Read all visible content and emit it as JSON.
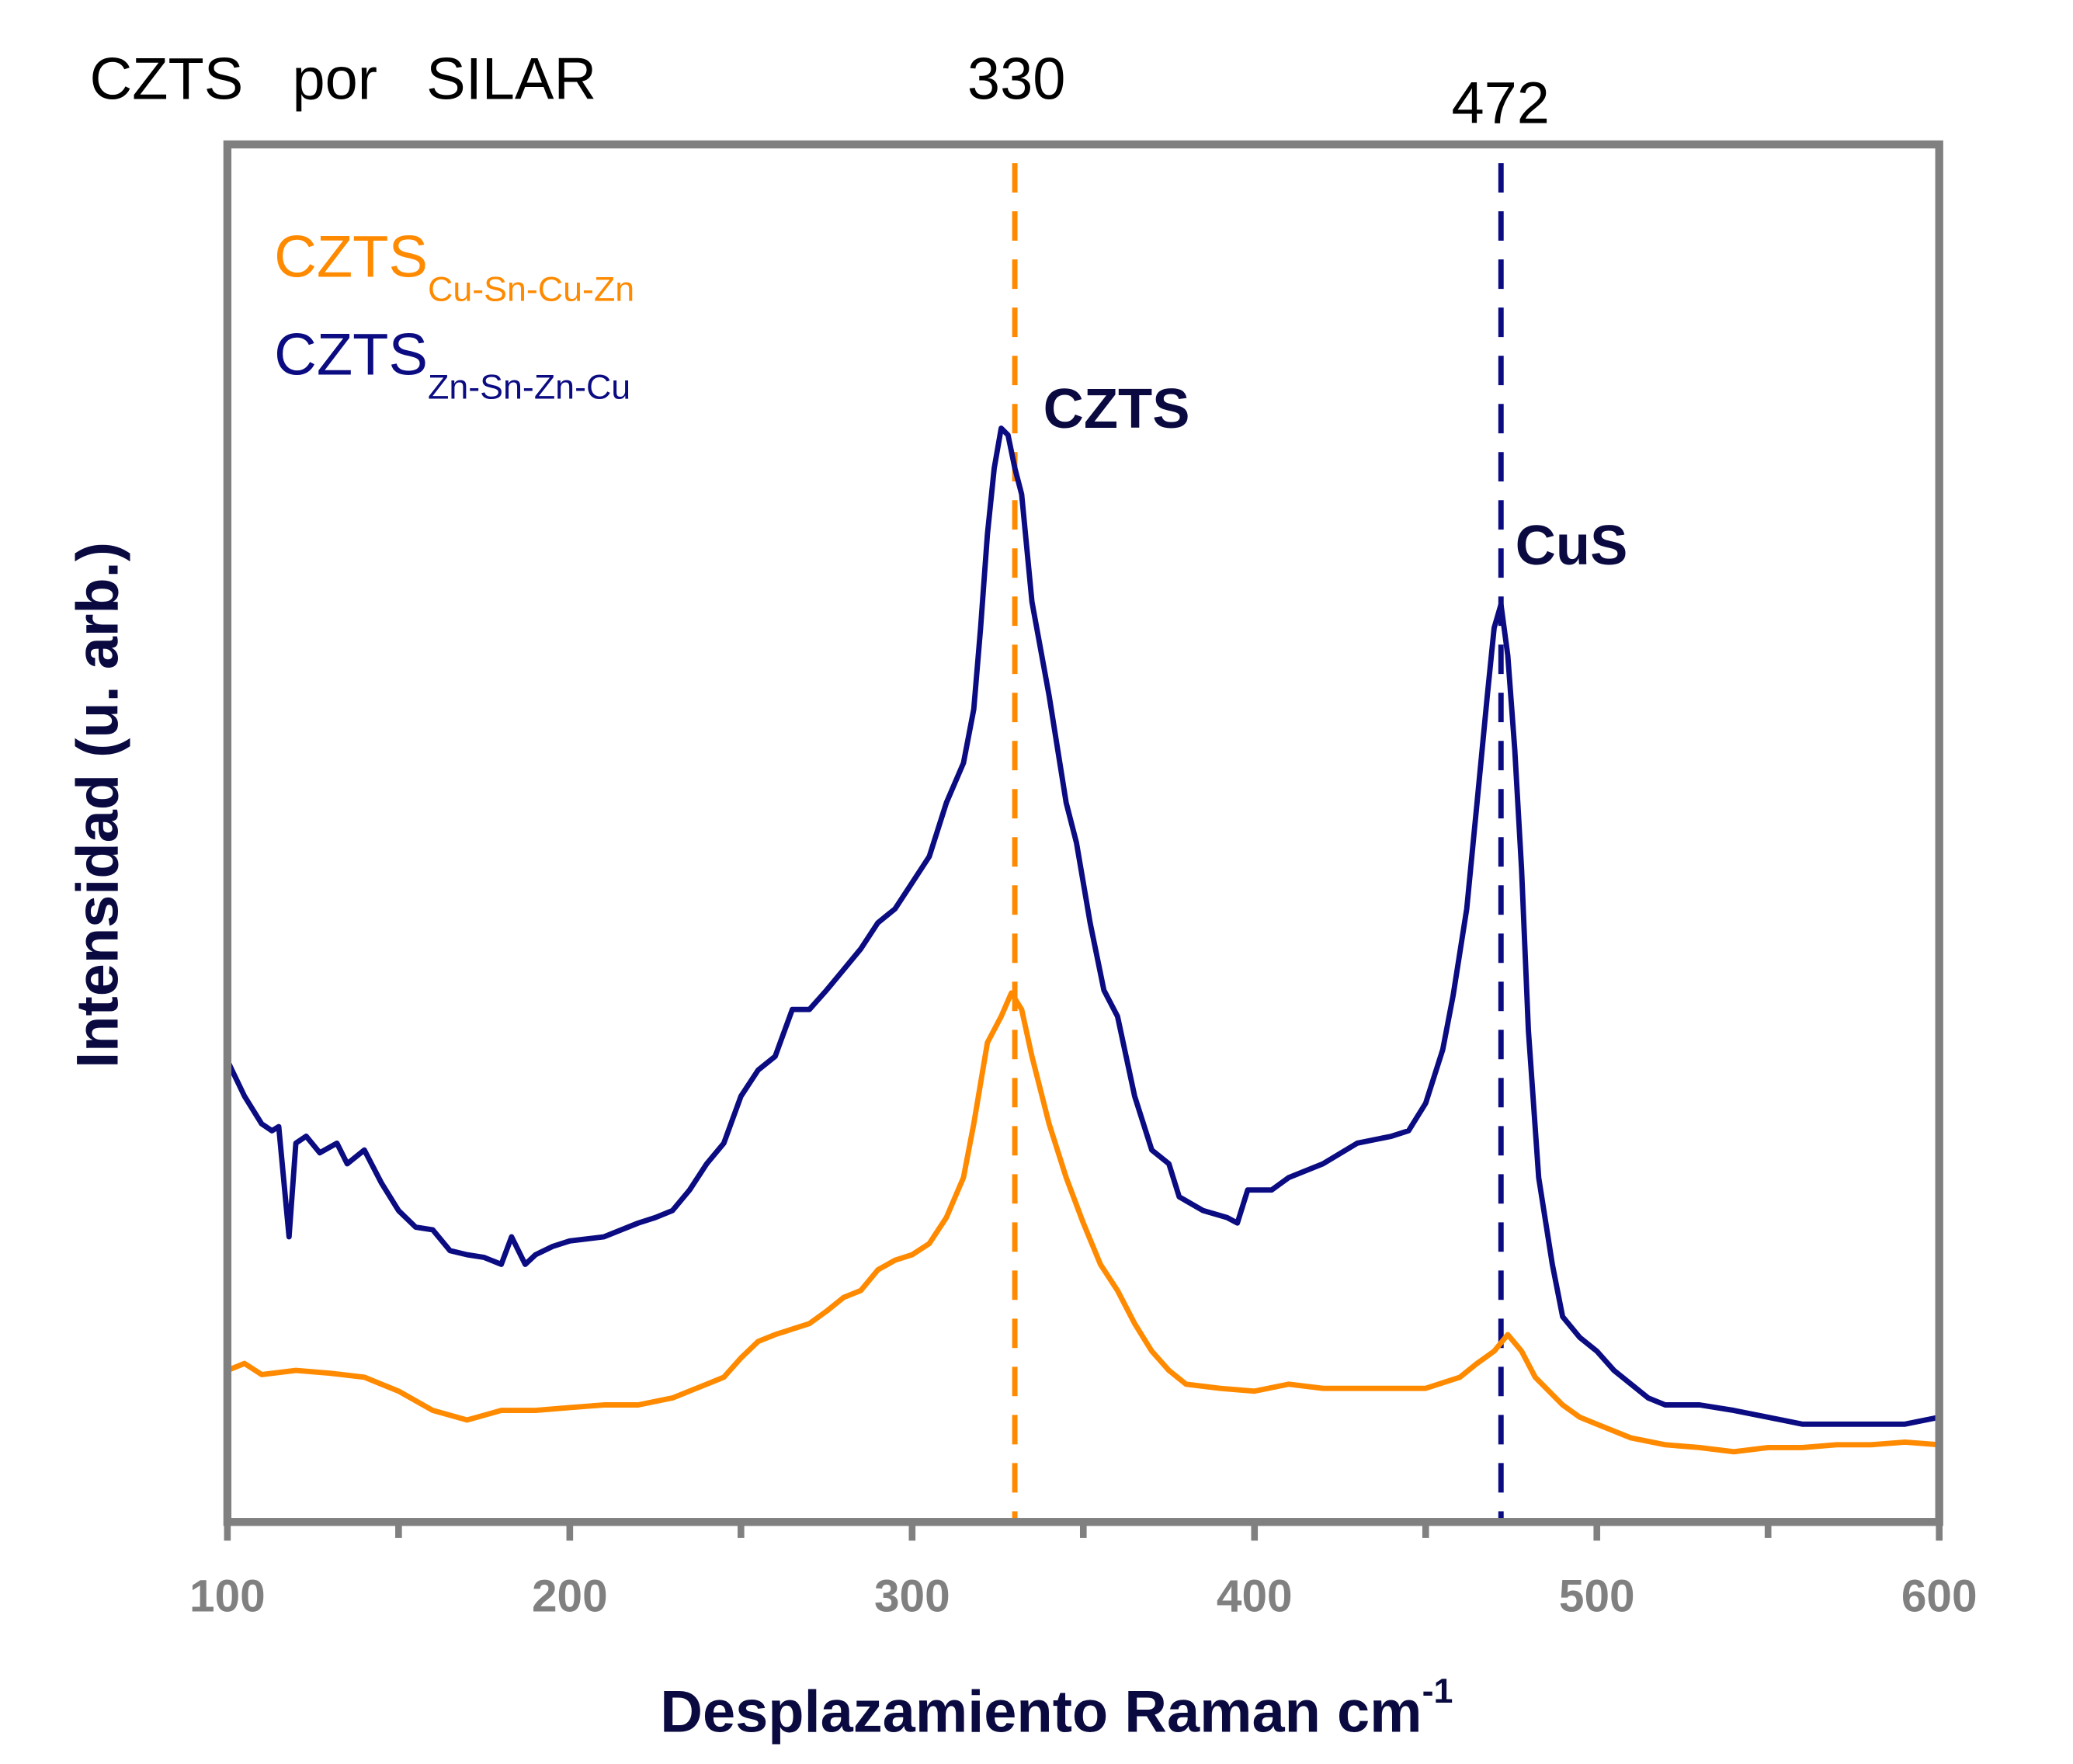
{
  "header": {
    "title": "CZTS   por   SILAR",
    "peak_label_330": "330",
    "peak_label_472": "472"
  },
  "colors": {
    "orange": "#FF8A00",
    "navy": "#0B0B82",
    "axis": "#808080",
    "text_dark": "#0A0A40"
  },
  "chart_data": {
    "type": "line",
    "title": "CZTS   por   SILAR",
    "xlabel": "Desplazamiento Raman cm",
    "xlabel_superscript": "-1",
    "ylabel": "Intensidad (u. arb.)",
    "xlim": [
      100,
      600
    ],
    "ylim": [
      0,
      100
    ],
    "xticks": [
      "100",
      "200",
      "300",
      "400",
      "500",
      "600"
    ],
    "minor_xticks": [
      150,
      250,
      350,
      450,
      550
    ],
    "grid": false,
    "legend_position": "top-left",
    "legend": [
      {
        "main": "CZTS",
        "sub": "Cu-Sn-Cu-Zn",
        "color": "#FF8A00"
      },
      {
        "main": "CZTS",
        "sub": "Zn-Sn-Zn-Cu",
        "color": "#0B0B82"
      }
    ],
    "reference_lines": [
      {
        "x": 330,
        "color": "#FF8A00",
        "style": "dashed",
        "label": "330"
      },
      {
        "x": 472,
        "color": "#0B0B82",
        "style": "dashed",
        "label": "472"
      }
    ],
    "annotations": [
      {
        "text": "CZTS",
        "x": 335,
        "y": 80
      },
      {
        "text": "CuS",
        "x": 474,
        "y": 70
      }
    ],
    "series": [
      {
        "name": "CZTS Cu-Sn-Cu-Zn",
        "color": "#FF8A00",
        "x": [
          100,
          105,
          110,
          120,
          130,
          140,
          150,
          160,
          170,
          180,
          190,
          200,
          210,
          220,
          230,
          240,
          245,
          250,
          255,
          260,
          270,
          275,
          280,
          285,
          290,
          295,
          300,
          305,
          310,
          315,
          318,
          322,
          326,
          329,
          332,
          335,
          340,
          345,
          350,
          355,
          360,
          365,
          370,
          375,
          380,
          390,
          400,
          410,
          420,
          430,
          440,
          450,
          460,
          465,
          470,
          474,
          478,
          482,
          490,
          495,
          500,
          510,
          520,
          530,
          540,
          550,
          560,
          570,
          580,
          590,
          600
        ],
        "y": [
          11.0,
          11.5,
          10.7,
          11.0,
          10.8,
          10.5,
          9.5,
          8.1,
          7.4,
          8.1,
          8.1,
          8.3,
          8.5,
          8.5,
          9.0,
          10.0,
          10.5,
          11.9,
          13.1,
          13.6,
          14.4,
          15.3,
          16.3,
          16.8,
          18.3,
          19.0,
          19.4,
          20.2,
          22.1,
          25.0,
          28.9,
          34.8,
          36.7,
          38.4,
          37.2,
          33.8,
          28.9,
          25.0,
          21.7,
          18.7,
          16.8,
          14.4,
          12.4,
          11.0,
          10.0,
          9.7,
          9.5,
          10.0,
          9.7,
          9.7,
          9.7,
          9.7,
          10.5,
          11.5,
          12.4,
          13.6,
          12.4,
          10.5,
          8.5,
          7.6,
          7.1,
          6.1,
          5.6,
          5.4,
          5.1,
          5.4,
          5.4,
          5.6,
          5.6,
          5.8,
          5.6
        ]
      },
      {
        "name": "CZTS Zn-Sn-Zn-Cu",
        "color": "#0B0B82",
        "x": [
          100,
          105,
          110,
          113,
          115,
          118,
          120,
          123,
          127,
          132,
          135,
          140,
          145,
          150,
          155,
          160,
          165,
          170,
          175,
          180,
          183,
          187,
          190,
          195,
          200,
          210,
          220,
          225,
          230,
          235,
          240,
          245,
          250,
          255,
          260,
          265,
          270,
          275,
          280,
          285,
          290,
          295,
          300,
          305,
          310,
          315,
          318,
          320,
          322,
          324,
          326,
          328,
          330,
          332,
          335,
          340,
          345,
          348,
          352,
          356,
          360,
          365,
          370,
          375,
          378,
          385,
          392,
          395,
          398,
          405,
          410,
          420,
          430,
          440,
          445,
          450,
          455,
          458,
          462,
          465,
          468,
          470,
          472,
          474,
          476,
          478,
          480,
          483,
          487,
          490,
          495,
          500,
          505,
          510,
          515,
          520,
          530,
          540,
          550,
          560,
          570,
          580,
          590,
          600
        ],
        "y": [
          33.5,
          30.9,
          28.9,
          28.4,
          28.7,
          20.7,
          27.5,
          28.0,
          26.8,
          27.5,
          26.0,
          27.0,
          24.6,
          22.6,
          21.4,
          21.2,
          19.7,
          19.4,
          19.2,
          18.7,
          20.7,
          18.7,
          19.4,
          20.0,
          20.4,
          20.7,
          21.7,
          22.1,
          22.6,
          24.1,
          26.0,
          27.5,
          30.9,
          32.8,
          33.8,
          37.2,
          37.2,
          38.6,
          40.1,
          41.6,
          43.5,
          44.5,
          46.4,
          48.3,
          52.2,
          55.1,
          59.0,
          64.9,
          71.7,
          76.5,
          79.4,
          78.9,
          76.5,
          74.6,
          66.8,
          60.0,
          52.2,
          49.3,
          43.5,
          38.6,
          36.7,
          30.9,
          27.0,
          26.0,
          23.6,
          22.6,
          22.1,
          21.7,
          24.1,
          24.1,
          25.0,
          26.0,
          27.5,
          28.0,
          28.4,
          30.4,
          34.3,
          38.2,
          44.5,
          52.2,
          60.0,
          64.9,
          66.6,
          62.9,
          56.1,
          47.4,
          35.7,
          25.0,
          18.7,
          14.9,
          13.4,
          12.4,
          11.0,
          10.0,
          9.0,
          8.5,
          8.5,
          8.1,
          7.6,
          7.1,
          7.1,
          7.1,
          7.1,
          7.6
        ]
      }
    ]
  }
}
